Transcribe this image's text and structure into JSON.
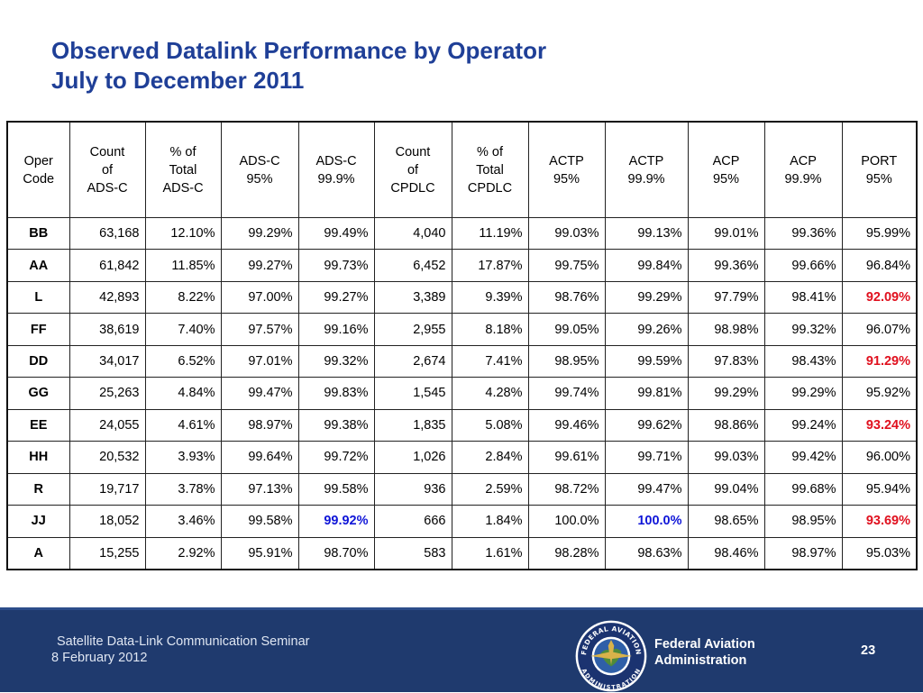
{
  "title": {
    "line1": "Observed Datalink Performance by Operator",
    "line2": "July to December 2011"
  },
  "table": {
    "headers": [
      [
        "Oper",
        "Code"
      ],
      [
        "Count",
        "of",
        "ADS-C"
      ],
      [
        "% of",
        "Total",
        "ADS-C"
      ],
      [
        "ADS-C",
        "95%"
      ],
      [
        "ADS-C",
        "99.9%"
      ],
      [
        "Count",
        "of",
        "CPDLC"
      ],
      [
        "% of",
        "Total",
        "CPDLC"
      ],
      [
        "ACTP",
        "95%"
      ],
      [
        "ACTP",
        "99.9%"
      ],
      [
        "ACP",
        "95%"
      ],
      [
        "ACP",
        "99.9%"
      ],
      [
        "PORT",
        "95%"
      ]
    ],
    "rows": [
      [
        "BB",
        "63,168",
        "12.10%",
        "99.29%",
        "99.49%",
        "4,040",
        "11.19%",
        "99.03%",
        "99.13%",
        "99.01%",
        "99.36%",
        "95.99%"
      ],
      [
        "AA",
        "61,842",
        "11.85%",
        "99.27%",
        "99.73%",
        "6,452",
        "17.87%",
        "99.75%",
        "99.84%",
        "99.36%",
        "99.66%",
        "96.84%"
      ],
      [
        "L",
        "42,893",
        "8.22%",
        "97.00%",
        "99.27%",
        "3,389",
        "9.39%",
        "98.76%",
        "99.29%",
        "97.79%",
        "98.41%",
        "92.09%"
      ],
      [
        "FF",
        "38,619",
        "7.40%",
        "97.57%",
        "99.16%",
        "2,955",
        "8.18%",
        "99.05%",
        "99.26%",
        "98.98%",
        "99.32%",
        "96.07%"
      ],
      [
        "DD",
        "34,017",
        "6.52%",
        "97.01%",
        "99.32%",
        "2,674",
        "7.41%",
        "98.95%",
        "99.59%",
        "97.83%",
        "98.43%",
        "91.29%"
      ],
      [
        "GG",
        "25,263",
        "4.84%",
        "99.47%",
        "99.83%",
        "1,545",
        "4.28%",
        "99.74%",
        "99.81%",
        "99.29%",
        "99.29%",
        "95.92%"
      ],
      [
        "EE",
        "24,055",
        "4.61%",
        "98.97%",
        "99.38%",
        "1,835",
        "5.08%",
        "99.46%",
        "99.62%",
        "98.86%",
        "99.24%",
        "93.24%"
      ],
      [
        "HH",
        "20,532",
        "3.93%",
        "99.64%",
        "99.72%",
        "1,026",
        "2.84%",
        "99.61%",
        "99.71%",
        "99.03%",
        "99.42%",
        "96.00%"
      ],
      [
        "R",
        "19,717",
        "3.78%",
        "97.13%",
        "99.58%",
        "936",
        "2.59%",
        "98.72%",
        "99.47%",
        "99.04%",
        "99.68%",
        "95.94%"
      ],
      [
        "JJ",
        "18,052",
        "3.46%",
        "99.58%",
        "99.92%",
        "666",
        "1.84%",
        "100.0%",
        "100.0%",
        "98.65%",
        "98.95%",
        "93.69%"
      ],
      [
        "A",
        "15,255",
        "2.92%",
        "95.91%",
        "98.70%",
        "583",
        "1.61%",
        "98.28%",
        "98.63%",
        "98.46%",
        "98.97%",
        "95.03%"
      ]
    ],
    "highlights": [
      {
        "row": 2,
        "col": 11,
        "color": "red"
      },
      {
        "row": 4,
        "col": 11,
        "color": "red"
      },
      {
        "row": 6,
        "col": 11,
        "color": "red"
      },
      {
        "row": 9,
        "col": 11,
        "color": "red"
      },
      {
        "row": 9,
        "col": 4,
        "color": "blue"
      },
      {
        "row": 9,
        "col": 8,
        "color": "blue"
      }
    ]
  },
  "colors": {
    "title": "#1f3f97",
    "footer_bg": "#1f3a6e",
    "highlight_red": "#e0101e",
    "highlight_blue": "#1016d8"
  },
  "footer": {
    "seminar": "Satellite Data-Link Communication Seminar",
    "date": "8 February 2012",
    "agency_line1": "Federal Aviation",
    "agency_line2": "Administration",
    "page_number": "23",
    "seal_icon": "faa-seal-icon",
    "seal_text_top": "FEDERAL AVIATION",
    "seal_text_bottom": "ADMINISTRATION"
  }
}
